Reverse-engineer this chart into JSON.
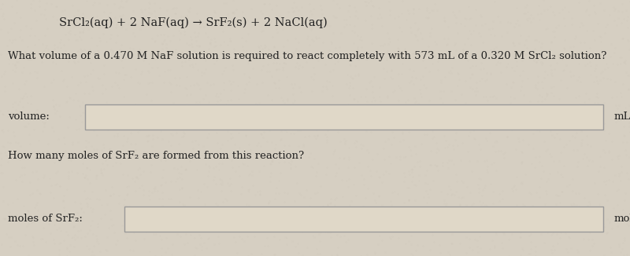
{
  "background_color": "#d6cfc2",
  "box_bg_color": "#e8e2d4",
  "equation_line": "SrCl₂(aq) + 2 NaF(aq) → SrF₂(s) + 2 NaCl(aq)",
  "question1": "What volume of a 0.470 M NaF solution is required to react completely with 573 mL of a 0.320 M SrCl₂ solution?",
  "label1": "volume:",
  "unit1": "mL",
  "question2": "How many moles of SrF₂ are formed from this reaction?",
  "label2": "moles of SrF₂:",
  "unit2": "mol",
  "box_facecolor": "#e0d8c8",
  "box_edgecolor": "#999999",
  "text_color": "#222222",
  "font_size_equation": 10.5,
  "font_size_question": 9.5,
  "font_size_label": 9.5,
  "font_size_unit": 9.5
}
